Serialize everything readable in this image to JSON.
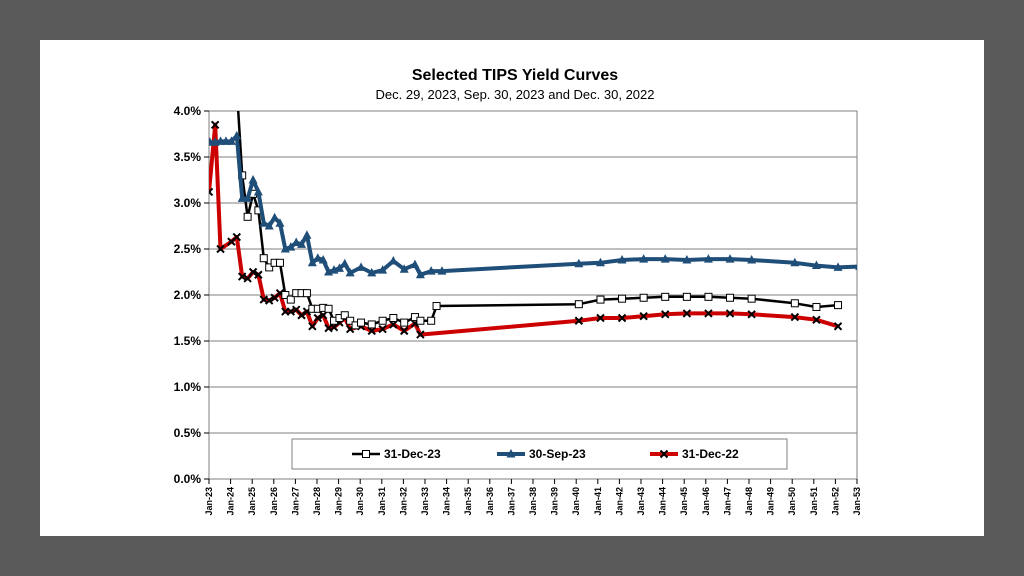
{
  "chart_data": {
    "type": "line",
    "title": "Selected TIPS Yield Curves",
    "subtitle": "Dec. 29, 2023, Sep. 30, 2023 and Dec. 30, 2022",
    "xlabel": "",
    "ylabel": "",
    "x_range": [
      "2023-01-01",
      "2053-01-01"
    ],
    "ylim": [
      0.0,
      4.0
    ],
    "y_ticks": [
      "0.0%",
      "0.5%",
      "1.0%",
      "1.5%",
      "2.0%",
      "2.5%",
      "3.0%",
      "3.5%",
      "4.0%"
    ],
    "x_ticks": [
      "Jan-23",
      "Jan-24",
      "Jan-25",
      "Jan-26",
      "Jan-27",
      "Jan-28",
      "Jan-29",
      "Jan-30",
      "Jan-31",
      "Jan-32",
      "Jan-33",
      "Jan-34",
      "Jan-35",
      "Jan-36",
      "Jan-37",
      "Jan-38",
      "Jan-39",
      "Jan-40",
      "Jan-41",
      "Jan-42",
      "Jan-43",
      "Jan-44",
      "Jan-45",
      "Jan-46",
      "Jan-47",
      "Jan-48",
      "Jan-49",
      "Jan-50",
      "Jan-51",
      "Jan-52",
      "Jan-53"
    ],
    "grid": "horizontal",
    "legend_position": "bottom-inside",
    "series": [
      {
        "name": "31-Dec-23",
        "color": "#000000",
        "marker": "open-square",
        "points": [
          [
            "2024-04-15",
            4.25
          ],
          [
            "2024-07-15",
            3.3
          ],
          [
            "2024-10-15",
            2.85
          ],
          [
            "2025-01-15",
            3.1
          ],
          [
            "2025-04-15",
            2.92
          ],
          [
            "2025-07-15",
            2.4
          ],
          [
            "2025-10-15",
            2.3
          ],
          [
            "2026-01-15",
            2.35
          ],
          [
            "2026-04-15",
            2.35
          ],
          [
            "2026-07-15",
            2.0
          ],
          [
            "2026-10-15",
            1.95
          ],
          [
            "2027-01-15",
            2.02
          ],
          [
            "2027-04-15",
            2.02
          ],
          [
            "2027-07-15",
            2.02
          ],
          [
            "2027-10-15",
            1.85
          ],
          [
            "2028-01-15",
            1.85
          ],
          [
            "2028-04-15",
            1.86
          ],
          [
            "2028-07-15",
            1.85
          ],
          [
            "2028-10-15",
            1.72
          ],
          [
            "2029-01-15",
            1.75
          ],
          [
            "2029-04-15",
            1.78
          ],
          [
            "2029-07-15",
            1.72
          ],
          [
            "2029-10-15",
            1.67
          ],
          [
            "2030-01-15",
            1.7
          ],
          [
            "2030-07-15",
            1.68
          ],
          [
            "2031-01-15",
            1.72
          ],
          [
            "2031-07-15",
            1.75
          ],
          [
            "2032-01-15",
            1.7
          ],
          [
            "2032-07-15",
            1.76
          ],
          [
            "2032-10-15",
            1.72
          ],
          [
            "2033-04-15",
            1.72
          ],
          [
            "2033-07-15",
            1.88
          ],
          [
            "2040-02-15",
            1.9
          ],
          [
            "2041-02-15",
            1.95
          ],
          [
            "2042-02-15",
            1.96
          ],
          [
            "2043-02-15",
            1.97
          ],
          [
            "2044-02-15",
            1.98
          ],
          [
            "2045-02-15",
            1.98
          ],
          [
            "2046-02-15",
            1.98
          ],
          [
            "2047-02-15",
            1.97
          ],
          [
            "2048-02-15",
            1.96
          ],
          [
            "2050-02-15",
            1.91
          ],
          [
            "2051-02-15",
            1.87
          ],
          [
            "2052-02-15",
            1.89
          ]
        ]
      },
      {
        "name": "30-Sep-23",
        "color": "#1f4e79",
        "marker": "triangle",
        "points": [
          [
            "2023-01-15",
            3.66
          ],
          [
            "2023-04-15",
            3.66
          ],
          [
            "2023-07-15",
            3.67
          ],
          [
            "2023-10-15",
            3.67
          ],
          [
            "2024-01-15",
            3.67
          ],
          [
            "2024-04-15",
            3.73
          ],
          [
            "2024-07-15",
            3.05
          ],
          [
            "2024-10-15",
            3.05
          ],
          [
            "2025-01-15",
            3.25
          ],
          [
            "2025-04-15",
            3.12
          ],
          [
            "2025-07-15",
            2.78
          ],
          [
            "2025-10-15",
            2.75
          ],
          [
            "2026-01-15",
            2.84
          ],
          [
            "2026-04-15",
            2.78
          ],
          [
            "2026-07-15",
            2.5
          ],
          [
            "2026-10-15",
            2.52
          ],
          [
            "2027-01-15",
            2.57
          ],
          [
            "2027-04-15",
            2.55
          ],
          [
            "2027-07-15",
            2.65
          ],
          [
            "2027-10-15",
            2.35
          ],
          [
            "2028-01-15",
            2.4
          ],
          [
            "2028-04-15",
            2.38
          ],
          [
            "2028-07-15",
            2.25
          ],
          [
            "2028-10-15",
            2.27
          ],
          [
            "2029-01-15",
            2.29
          ],
          [
            "2029-04-15",
            2.34
          ],
          [
            "2029-07-15",
            2.24
          ],
          [
            "2030-01-15",
            2.3
          ],
          [
            "2030-07-15",
            2.24
          ],
          [
            "2031-01-15",
            2.27
          ],
          [
            "2031-07-15",
            2.37
          ],
          [
            "2032-01-15",
            2.28
          ],
          [
            "2032-07-15",
            2.33
          ],
          [
            "2032-10-15",
            2.22
          ],
          [
            "2033-04-15",
            2.26
          ],
          [
            "2033-10-15",
            2.26
          ],
          [
            "2040-02-15",
            2.34
          ],
          [
            "2041-02-15",
            2.35
          ],
          [
            "2042-02-15",
            2.38
          ],
          [
            "2043-02-15",
            2.39
          ],
          [
            "2044-02-15",
            2.39
          ],
          [
            "2045-02-15",
            2.38
          ],
          [
            "2046-02-15",
            2.39
          ],
          [
            "2047-02-15",
            2.39
          ],
          [
            "2048-02-15",
            2.38
          ],
          [
            "2050-02-15",
            2.35
          ],
          [
            "2051-02-15",
            2.32
          ],
          [
            "2052-02-15",
            2.3
          ],
          [
            "2053-02-15",
            2.31
          ]
        ]
      },
      {
        "name": "31-Dec-22",
        "color": "#cc0000",
        "marker": "x",
        "points": [
          [
            "2023-01-01",
            3.12
          ],
          [
            "2023-04-15",
            3.85
          ],
          [
            "2023-07-15",
            2.5
          ],
          [
            "2024-01-15",
            2.58
          ],
          [
            "2024-04-15",
            2.63
          ],
          [
            "2024-07-15",
            2.2
          ],
          [
            "2024-10-15",
            2.18
          ],
          [
            "2025-01-15",
            2.25
          ],
          [
            "2025-04-15",
            2.22
          ],
          [
            "2025-07-15",
            1.95
          ],
          [
            "2025-10-15",
            1.94
          ],
          [
            "2026-01-15",
            1.97
          ],
          [
            "2026-04-15",
            2.02
          ],
          [
            "2026-07-15",
            1.82
          ],
          [
            "2026-10-15",
            1.82
          ],
          [
            "2027-01-15",
            1.84
          ],
          [
            "2027-04-15",
            1.78
          ],
          [
            "2027-07-15",
            1.82
          ],
          [
            "2027-10-15",
            1.66
          ],
          [
            "2028-01-15",
            1.75
          ],
          [
            "2028-04-15",
            1.78
          ],
          [
            "2028-07-15",
            1.64
          ],
          [
            "2028-10-15",
            1.65
          ],
          [
            "2029-01-15",
            1.7
          ],
          [
            "2029-04-15",
            1.75
          ],
          [
            "2029-07-15",
            1.63
          ],
          [
            "2030-01-15",
            1.66
          ],
          [
            "2030-07-15",
            1.61
          ],
          [
            "2031-01-15",
            1.63
          ],
          [
            "2031-07-15",
            1.68
          ],
          [
            "2032-01-15",
            1.61
          ],
          [
            "2032-07-15",
            1.69
          ],
          [
            "2032-10-15",
            1.57
          ],
          [
            "2040-02-15",
            1.72
          ],
          [
            "2041-02-15",
            1.75
          ],
          [
            "2042-02-15",
            1.75
          ],
          [
            "2043-02-15",
            1.77
          ],
          [
            "2044-02-15",
            1.79
          ],
          [
            "2045-02-15",
            1.8
          ],
          [
            "2046-02-15",
            1.8
          ],
          [
            "2047-02-15",
            1.8
          ],
          [
            "2048-02-15",
            1.79
          ],
          [
            "2050-02-15",
            1.76
          ],
          [
            "2051-02-15",
            1.73
          ],
          [
            "2052-02-15",
            1.66
          ]
        ]
      }
    ]
  }
}
